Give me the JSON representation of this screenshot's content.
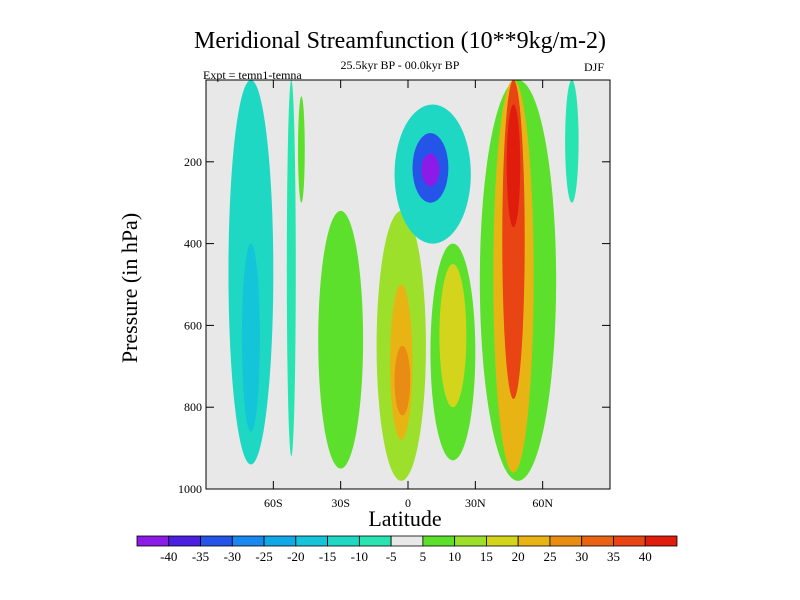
{
  "chart_data": {
    "type": "heatmap",
    "title": "Meridional Streamfunction (10**9kg/m-2)",
    "subtitle": "25.5kyr BP - 00.0kyr BP",
    "left_label": "Expt = temn1-temna",
    "right_label": "DJF",
    "xlabel": "Latitude",
    "ylabel": "Pressure (in hPa)",
    "x_ticks": [
      {
        "value": -60,
        "label": "60S"
      },
      {
        "value": -30,
        "label": "30S"
      },
      {
        "value": 0,
        "label": "0"
      },
      {
        "value": 30,
        "label": "30N"
      },
      {
        "value": 60,
        "label": "60N"
      }
    ],
    "y_ticks": [
      {
        "value": 200,
        "label": "200"
      },
      {
        "value": 400,
        "label": "400"
      },
      {
        "value": 600,
        "label": "600"
      },
      {
        "value": 800,
        "label": "800"
      },
      {
        "value": 1000,
        "label": "1000"
      }
    ],
    "xlim": [
      -90,
      90
    ],
    "ylim": [
      1000,
      0
    ],
    "colorbar": {
      "levels": [
        -40,
        -35,
        -30,
        -25,
        -20,
        -15,
        -10,
        -5,
        5,
        10,
        15,
        20,
        25,
        30,
        35,
        40
      ],
      "colors": [
        "#8c1be8",
        "#4a1fe0",
        "#2454e8",
        "#1a86f0",
        "#12a8e8",
        "#14c4d8",
        "#1ed8c4",
        "#28e4b0",
        "#e8e8e8",
        "#5ce02c",
        "#9ce02c",
        "#d4d41c",
        "#e8b414",
        "#e88c14",
        "#e86414",
        "#e84414",
        "#e01c0c"
      ]
    },
    "regions": [
      {
        "level": -10,
        "lat": [
          -80,
          -60
        ],
        "p": [
          0,
          940
        ],
        "note": "southern negative column"
      },
      {
        "level": -15,
        "lat": [
          -74,
          -66
        ],
        "p": [
          400,
          860
        ]
      },
      {
        "level": -5,
        "lat": [
          -54,
          -50
        ],
        "p": [
          0,
          920
        ]
      },
      {
        "level": 5,
        "lat": [
          -49,
          -46
        ],
        "p": [
          40,
          300
        ]
      },
      {
        "level": 5,
        "lat": [
          -40,
          -20
        ],
        "p": [
          320,
          950
        ]
      },
      {
        "level": 10,
        "lat": [
          -14,
          8
        ],
        "p": [
          320,
          980
        ]
      },
      {
        "level": 20,
        "lat": [
          -8,
          2
        ],
        "p": [
          500,
          880
        ]
      },
      {
        "level": 25,
        "lat": [
          -6,
          1
        ],
        "p": [
          650,
          820
        ]
      },
      {
        "level": -10,
        "lat": [
          -6,
          28
        ],
        "p": [
          60,
          400
        ]
      },
      {
        "level": -30,
        "lat": [
          2,
          18
        ],
        "p": [
          130,
          300
        ]
      },
      {
        "level": -40,
        "lat": [
          6,
          14
        ],
        "p": [
          180,
          260
        ]
      },
      {
        "level": 5,
        "lat": [
          10,
          30
        ],
        "p": [
          400,
          930
        ]
      },
      {
        "level": 15,
        "lat": [
          14,
          26
        ],
        "p": [
          450,
          800
        ]
      },
      {
        "level": 5,
        "lat": [
          32,
          66
        ],
        "p": [
          0,
          980
        ]
      },
      {
        "level": 20,
        "lat": [
          38,
          56
        ],
        "p": [
          0,
          960
        ]
      },
      {
        "level": 35,
        "lat": [
          42,
          52
        ],
        "p": [
          0,
          780
        ]
      },
      {
        "level": 40,
        "lat": [
          44,
          50
        ],
        "p": [
          60,
          360
        ]
      },
      {
        "level": -5,
        "lat": [
          70,
          76
        ],
        "p": [
          0,
          300
        ]
      }
    ]
  }
}
